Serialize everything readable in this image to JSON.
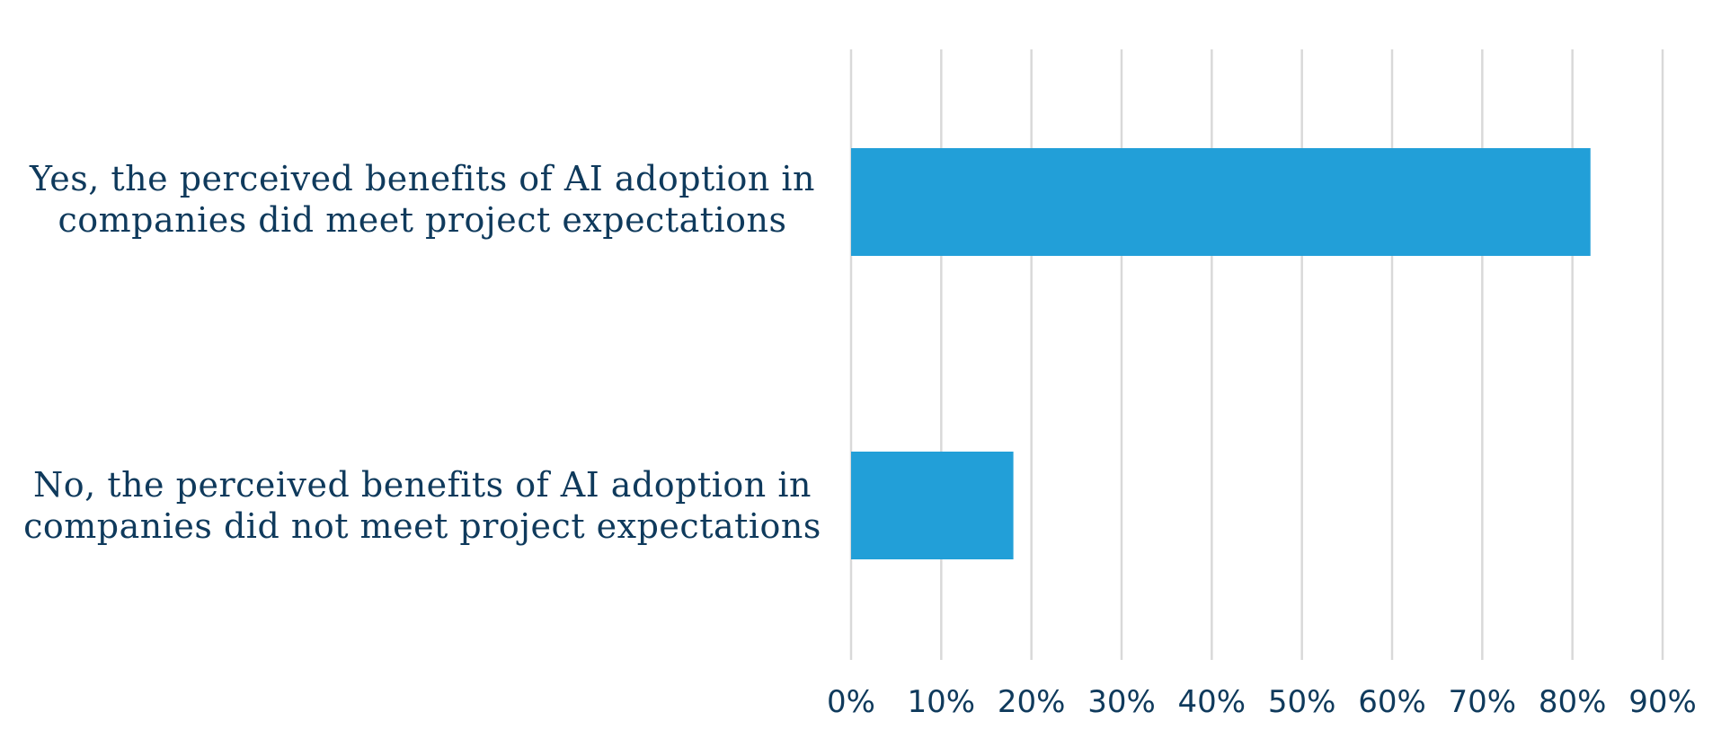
{
  "chart_data": {
    "type": "bar",
    "orientation": "horizontal",
    "categories": [
      "Yes, the perceived benefits of AI adoption in companies did meet project expectations",
      "No, the perceived benefits of AI adoption in companies did not meet project expectations"
    ],
    "category_lines": [
      [
        "Yes, the perceived benefits of AI adoption in",
        "companies did meet project expectations"
      ],
      [
        "No, the perceived benefits of AI adoption in",
        "companies did not meet project expectations"
      ]
    ],
    "values": [
      82,
      18
    ],
    "xlim": [
      0,
      90
    ],
    "x_ticks": [
      "0%",
      "10%",
      "20%",
      "30%",
      "40%",
      "50%",
      "60%",
      "70%",
      "80%",
      "90%"
    ],
    "grid": true,
    "legend": "none",
    "title": "",
    "xlabel": "",
    "ylabel": ""
  },
  "colors": {
    "bar": "#229fd8",
    "grid": "#d9d9d9",
    "text": "#0f3a5c"
  }
}
